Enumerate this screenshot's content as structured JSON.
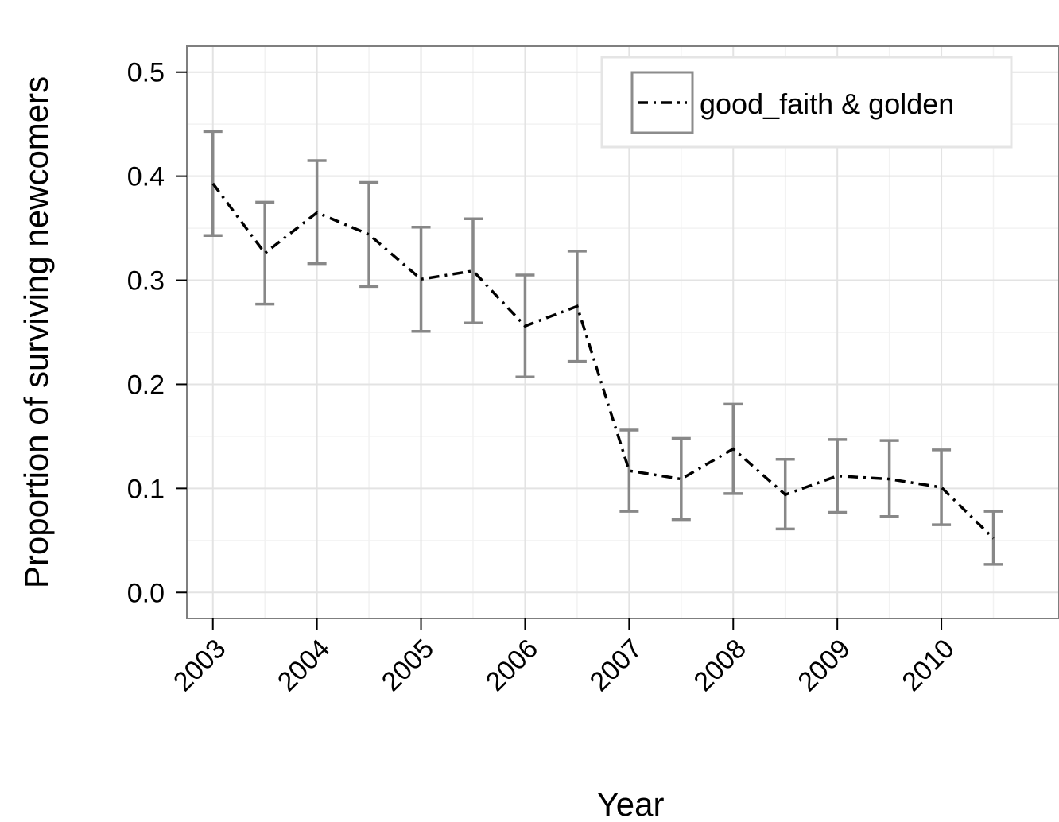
{
  "chart_data": {
    "type": "line",
    "title": "",
    "xlabel": "Year",
    "ylabel": "Proportion of surviving newcomers",
    "xlim": [
      2002.75,
      2011.13
    ],
    "ylim": [
      -0.025,
      0.525
    ],
    "x_ticks": [
      "2003",
      "2004",
      "2005",
      "2006",
      "2007",
      "2008",
      "2009",
      "2010"
    ],
    "y_ticks": [
      "0.0",
      "0.1",
      "0.2",
      "0.3",
      "0.4",
      "0.5"
    ],
    "grid": true,
    "legend_position": "top-right",
    "series": [
      {
        "name": "good_faith & golden",
        "line_style": "dashdot",
        "line_color": "#000000",
        "errorbar_color": "#888888",
        "x": [
          2003,
          2003.5,
          2004,
          2004.5,
          2005,
          2005.5,
          2006,
          2006.5,
          2007,
          2007.5,
          2008,
          2008.5,
          2009,
          2009.5,
          2010,
          2010.5
        ],
        "y": [
          0.393,
          0.326,
          0.365,
          0.344,
          0.301,
          0.309,
          0.256,
          0.275,
          0.117,
          0.109,
          0.138,
          0.094,
          0.112,
          0.109,
          0.101,
          0.052
        ],
        "lower": [
          0.343,
          0.277,
          0.316,
          0.294,
          0.251,
          0.259,
          0.207,
          0.222,
          0.078,
          0.07,
          0.095,
          0.061,
          0.077,
          0.073,
          0.065,
          0.027
        ],
        "upper": [
          0.443,
          0.375,
          0.415,
          0.394,
          0.351,
          0.359,
          0.305,
          0.328,
          0.156,
          0.148,
          0.181,
          0.128,
          0.147,
          0.146,
          0.137,
          0.078
        ]
      }
    ]
  }
}
